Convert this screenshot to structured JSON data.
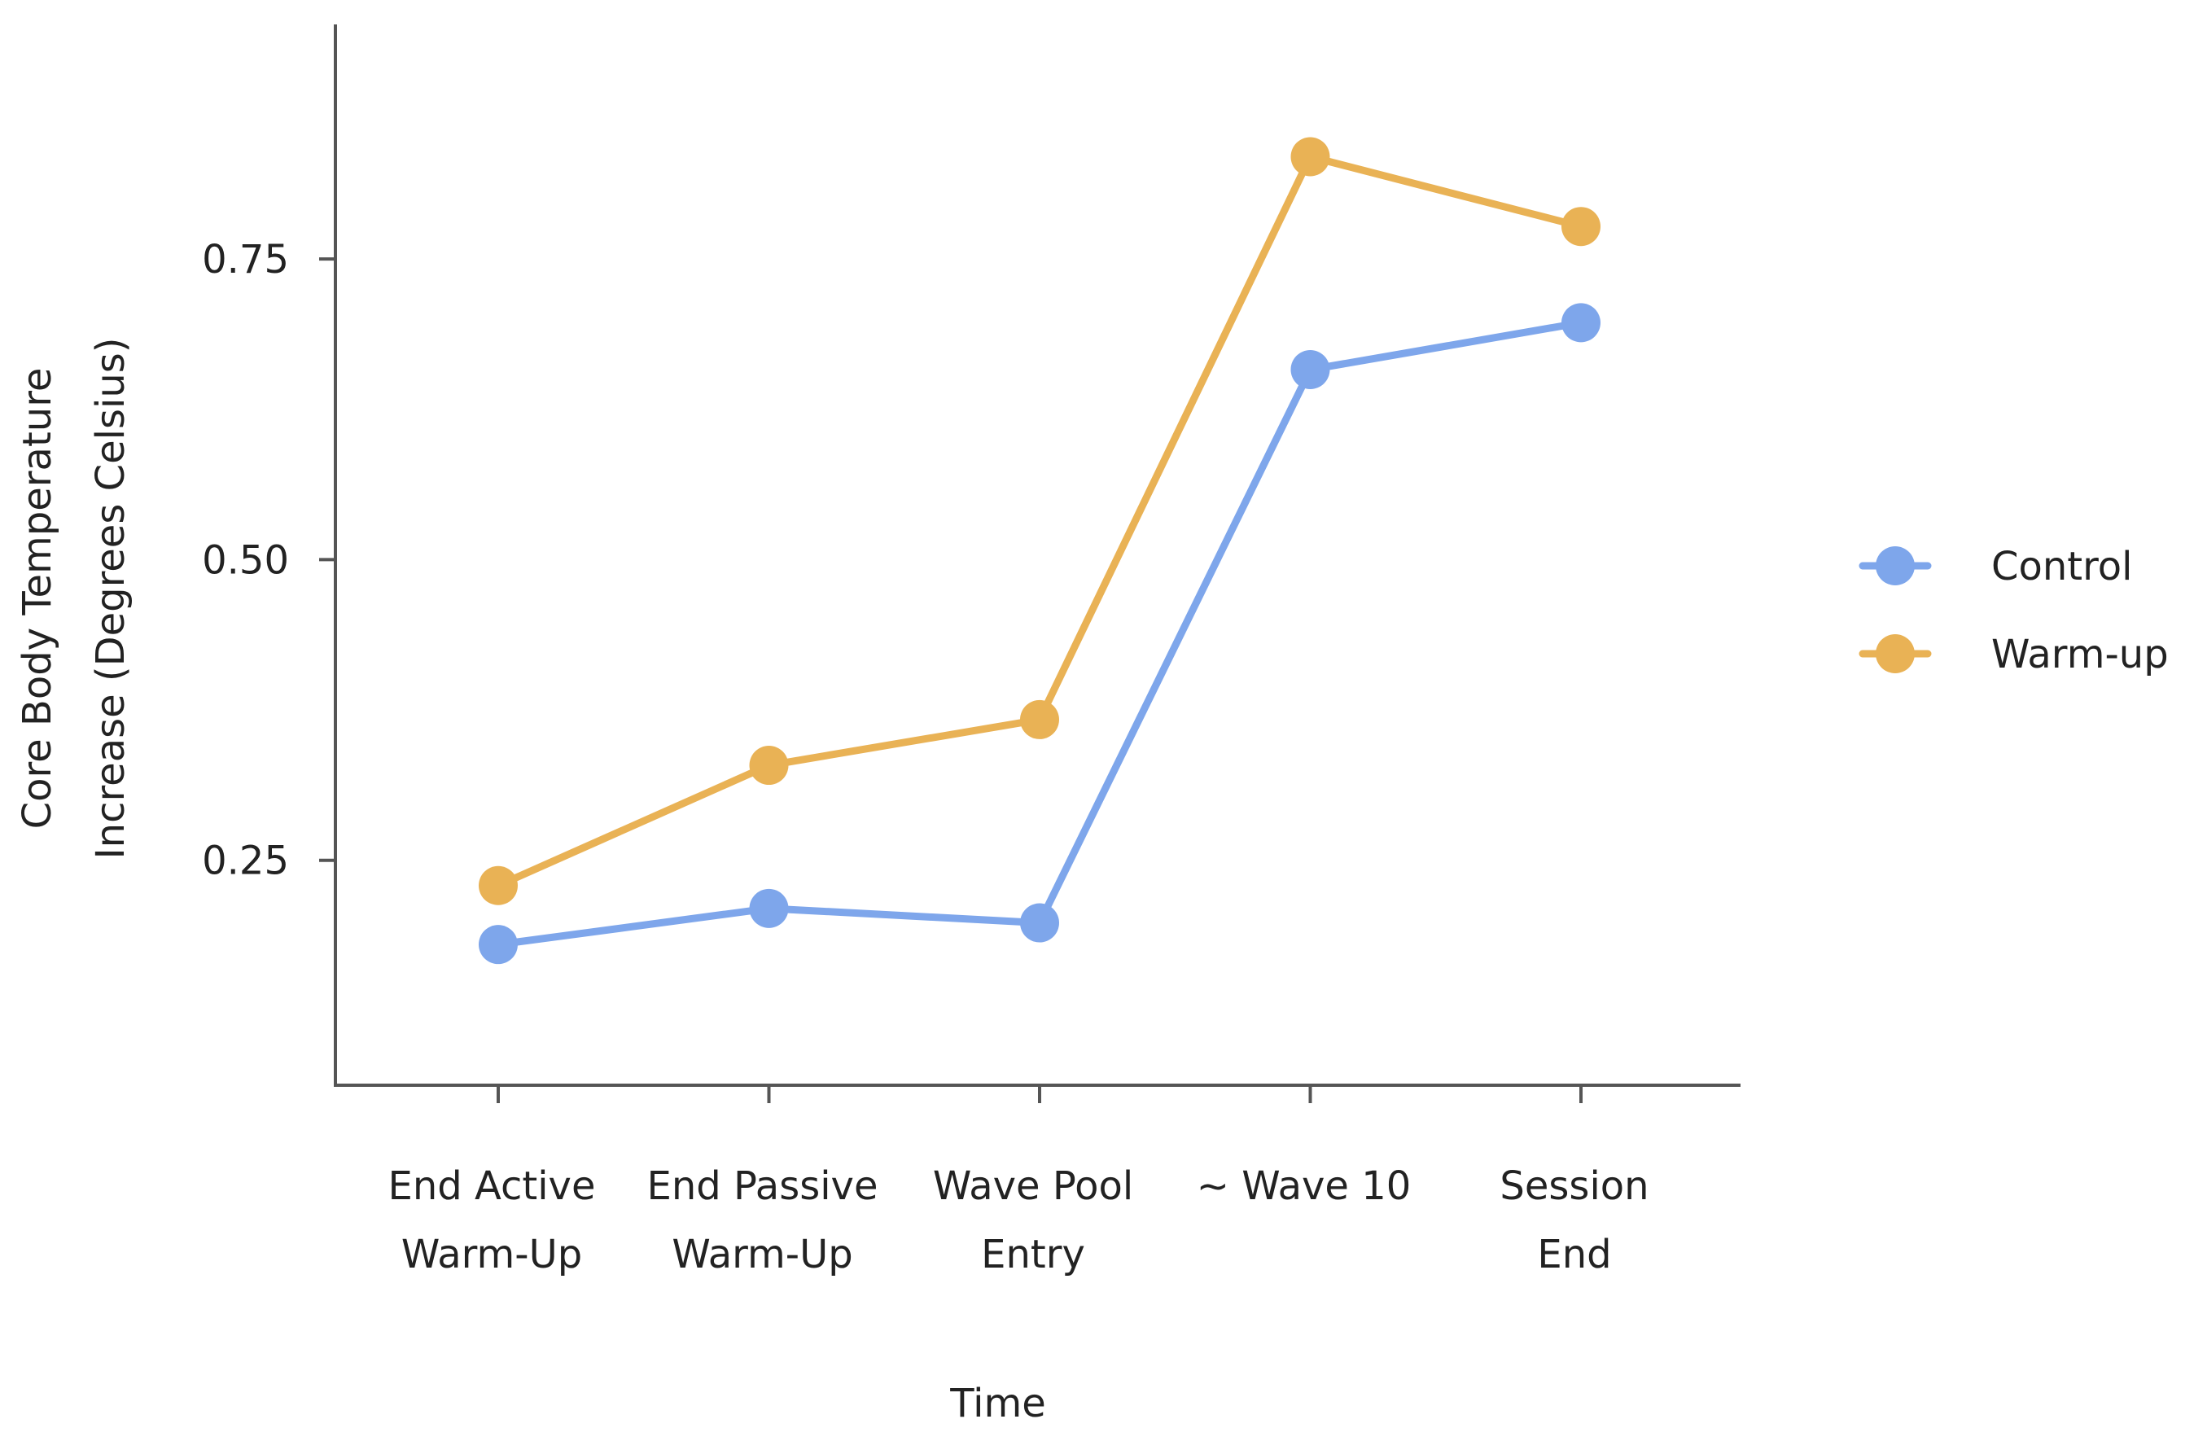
{
  "chart_data": {
    "type": "line",
    "title": "",
    "xlabel": "Time",
    "ylabel_lines": [
      "Core Body Temperature",
      "Increase (Degrees Celsius)"
    ],
    "ylim": [
      0.063,
      0.945
    ],
    "y_ticks": [
      {
        "value": 0.25,
        "label": "0.25"
      },
      {
        "value": 0.5,
        "label": "0.50"
      },
      {
        "value": 0.75,
        "label": "0.75"
      }
    ],
    "categories": [
      {
        "lines": [
          "End Active",
          "Warm-Up"
        ]
      },
      {
        "lines": [
          "End Passive",
          "Warm-Up"
        ]
      },
      {
        "lines": [
          "Wave Pool",
          "Entry"
        ]
      },
      {
        "lines": [
          "~ Wave 10"
        ]
      },
      {
        "lines": [
          "Session",
          "End"
        ]
      }
    ],
    "series": [
      {
        "name": "Control",
        "color": "#7EA6EB",
        "values": [
          0.18,
          0.21,
          0.198,
          0.658,
          0.697
        ]
      },
      {
        "name": "Warm-up",
        "color": "#E9B255",
        "values": [
          0.229,
          0.329,
          0.367,
          0.835,
          0.777
        ]
      }
    ],
    "legend_position": "right",
    "grid": false
  }
}
